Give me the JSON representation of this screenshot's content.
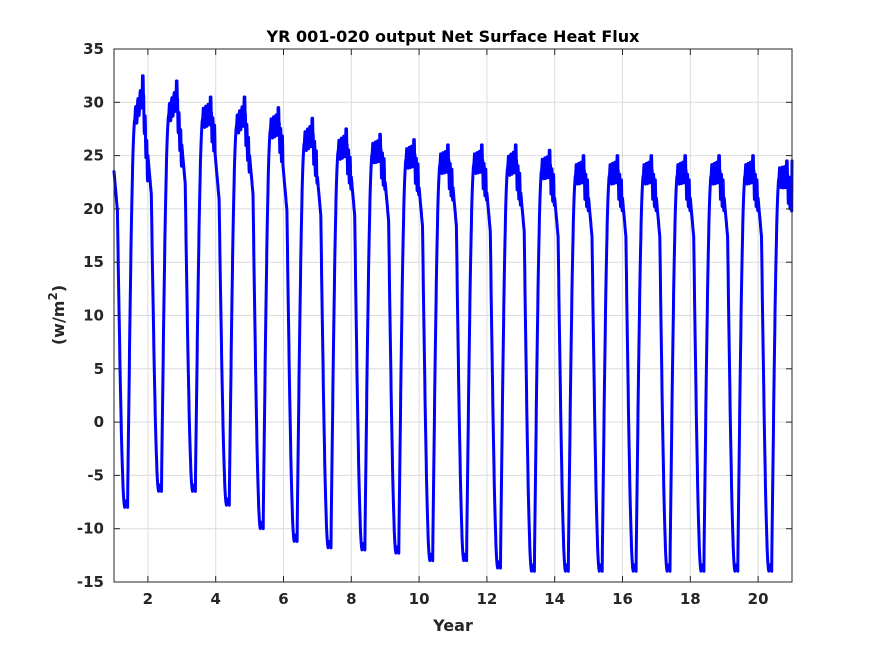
{
  "chart_data": {
    "type": "line",
    "title": "YR 001-020 output Net Surface Heat Flux",
    "xlabel": "Year",
    "ylabel_prefix": "(w/m",
    "ylabel_sup": "2",
    "ylabel_suffix": ")",
    "xlim": [
      1,
      21
    ],
    "ylim": [
      -15,
      35
    ],
    "xticks": [
      2,
      4,
      6,
      8,
      10,
      12,
      14,
      16,
      18,
      20
    ],
    "yticks": [
      -15,
      -10,
      -5,
      0,
      5,
      10,
      15,
      20,
      25,
      30,
      35
    ],
    "grid": true,
    "colors": {
      "series": "#0000ff",
      "axes": "#262626",
      "grid": "#dcdcdc"
    },
    "series": [
      {
        "cycles": [
          {
            "start": 23.5,
            "peak": 32.5,
            "min": -8.0
          },
          {
            "start": 25.0,
            "peak": 32.0,
            "min": -6.5
          },
          {
            "start": 26.0,
            "peak": 30.5,
            "min": -6.5
          },
          {
            "start": 24.5,
            "peak": 30.5,
            "min": -7.8
          },
          {
            "start": 25.0,
            "peak": 29.5,
            "min": -10.0
          },
          {
            "start": 23.5,
            "peak": 28.5,
            "min": -11.2
          },
          {
            "start": 23.0,
            "peak": 27.5,
            "min": -11.8
          },
          {
            "start": 23.0,
            "peak": 27.0,
            "min": -12.0
          },
          {
            "start": 22.5,
            "peak": 26.5,
            "min": -12.3
          },
          {
            "start": 22.0,
            "peak": 26.0,
            "min": -13.0
          },
          {
            "start": 22.0,
            "peak": 26.0,
            "min": -13.0
          },
          {
            "start": 21.5,
            "peak": 26.0,
            "min": -13.7
          },
          {
            "start": 21.5,
            "peak": 25.5,
            "min": -14.0
          },
          {
            "start": 21.0,
            "peak": 25.0,
            "min": -14.0
          },
          {
            "start": 21.0,
            "peak": 25.0,
            "min": -14.0
          },
          {
            "start": 21.0,
            "peak": 25.0,
            "min": -14.0
          },
          {
            "start": 21.0,
            "peak": 25.0,
            "min": -14.0
          },
          {
            "start": 21.0,
            "peak": 25.0,
            "min": -14.0
          },
          {
            "start": 21.0,
            "peak": 25.0,
            "min": -14.0
          },
          {
            "start": 21.0,
            "peak": 24.5,
            "min": -14.0
          }
        ]
      }
    ]
  }
}
